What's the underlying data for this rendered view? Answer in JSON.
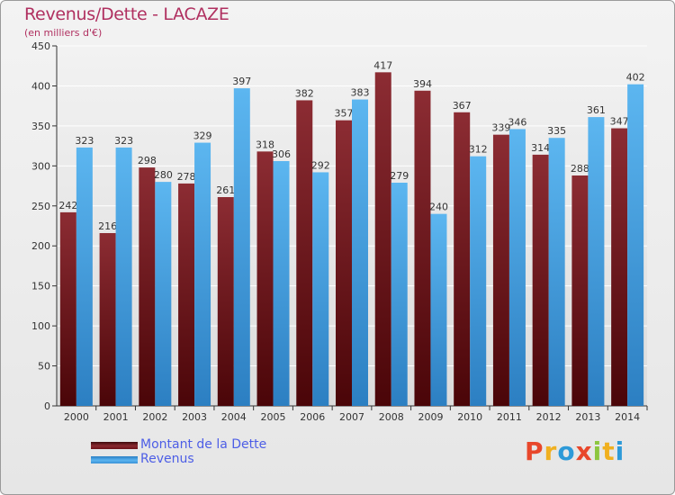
{
  "header": {
    "title": "Revenus/Dette - LACAZE",
    "subtitle": "(en milliers d'€)"
  },
  "brand": {
    "letters": [
      "P",
      "r",
      "o",
      "x",
      "i",
      "t",
      "i"
    ],
    "colors": [
      "#e8472b",
      "#f0b020",
      "#2d9ad8",
      "#e8472b",
      "#8dc63f",
      "#f0b020",
      "#2d9ad8"
    ]
  },
  "chart_data": {
    "type": "bar",
    "categories": [
      "2000",
      "2001",
      "2002",
      "2003",
      "2004",
      "2005",
      "2006",
      "2007",
      "2008",
      "2009",
      "2010",
      "2011",
      "2012",
      "2013",
      "2014"
    ],
    "series": [
      {
        "name": "Montant de la Dette",
        "color": "#7b1f26",
        "values": [
          242,
          216,
          298,
          278,
          261,
          318,
          382,
          357,
          417,
          394,
          367,
          339,
          314,
          288,
          347
        ]
      },
      {
        "name": "Revenus",
        "color": "#44a6e8",
        "values": [
          323,
          323,
          280,
          329,
          397,
          306,
          292,
          383,
          279,
          240,
          312,
          346,
          335,
          361,
          402
        ]
      }
    ],
    "ylim": [
      0,
      450
    ],
    "yticks": [
      0,
      50,
      100,
      150,
      200,
      250,
      300,
      350,
      400,
      450
    ],
    "grid": true,
    "legend_position": "bottom-left"
  }
}
